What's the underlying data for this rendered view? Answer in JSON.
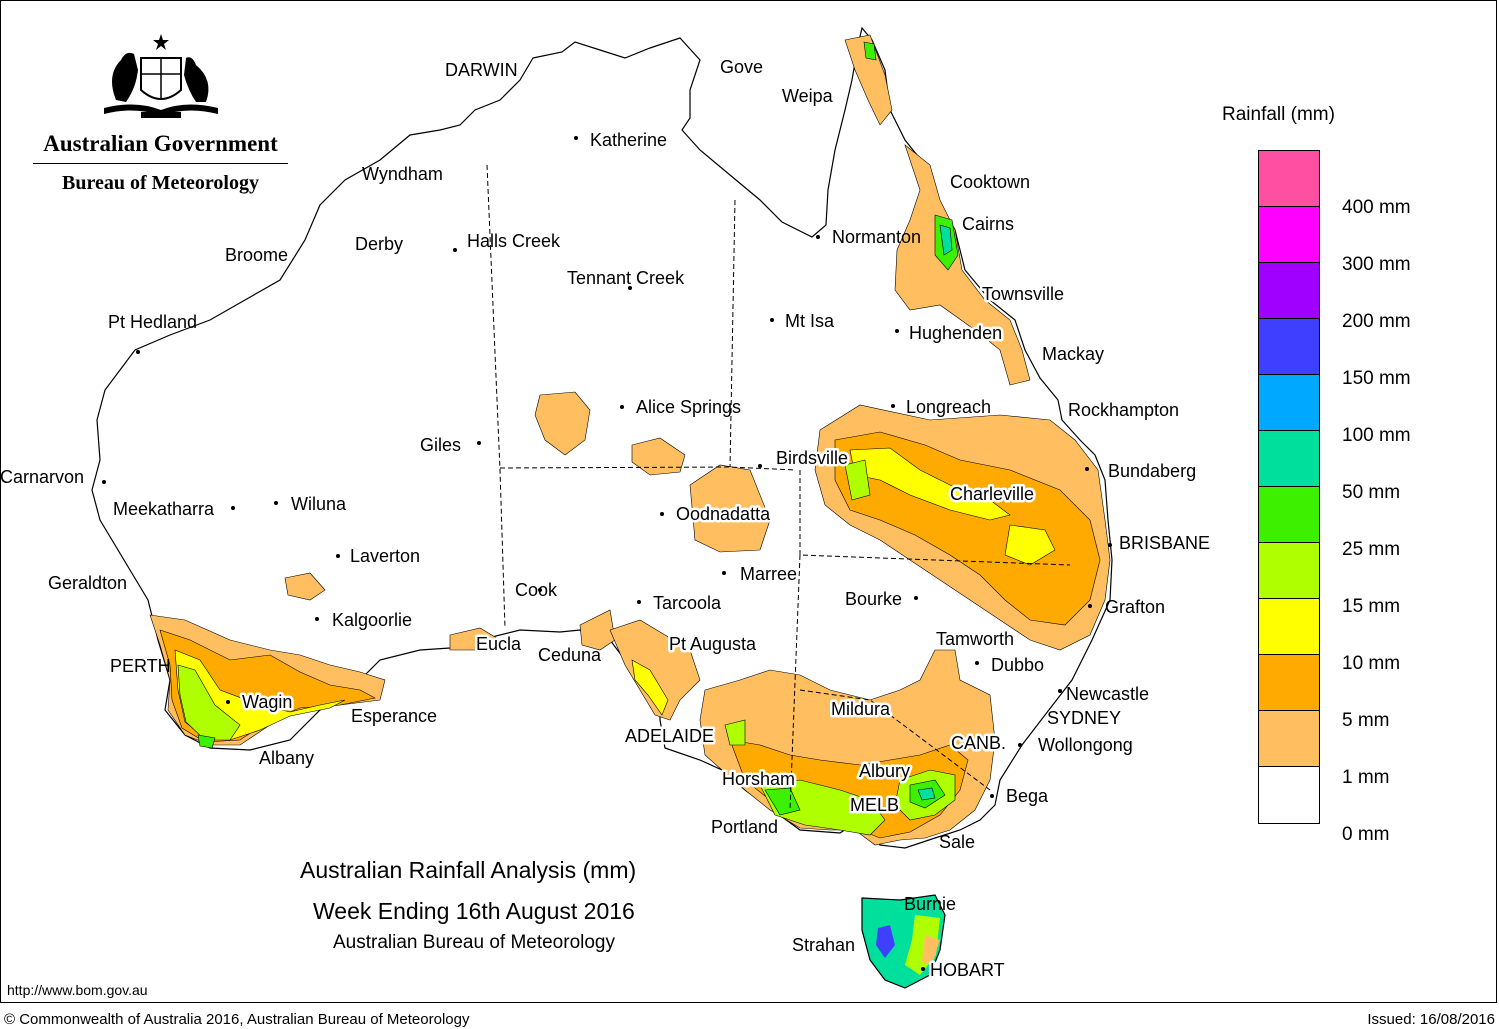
{
  "header": {
    "agency": "Australian Government",
    "bureau": "Bureau of Meteorology"
  },
  "legend": {
    "title": "Rainfall (mm)",
    "bands": [
      {
        "color": "#ff4fa3"
      },
      {
        "color": "#ff00ff"
      },
      {
        "color": "#a000ff"
      },
      {
        "color": "#3f3fff"
      },
      {
        "color": "#00a8ff"
      },
      {
        "color": "#00e09c"
      },
      {
        "color": "#3cf000"
      },
      {
        "color": "#b0ff00"
      },
      {
        "color": "#ffff00"
      },
      {
        "color": "#ffaa00"
      },
      {
        "color": "#ffbf60"
      },
      {
        "color": "#ffffff"
      }
    ],
    "ticks": [
      "400 mm",
      "300 mm",
      "200 mm",
      "150 mm",
      "100 mm",
      "50 mm",
      "25 mm",
      "15 mm",
      "10 mm",
      "5 mm",
      "1 mm",
      "0 mm"
    ]
  },
  "places": {
    "darwin": "DARWIN",
    "gove": "Gove",
    "weipa": "Weipa",
    "katherine": "Katherine",
    "wyndham": "Wyndham",
    "cooktown": "Cooktown",
    "cairns": "Cairns",
    "normanton": "Normanton",
    "derby": "Derby",
    "halls_creek": "Halls Creek",
    "broome": "Broome",
    "tennant_creek": "Tennant Creek",
    "townsville": "Townsville",
    "pt_hedland": "Pt Hedland",
    "mt_isa": "Mt Isa",
    "hughenden": "Hughenden",
    "mackay": "Mackay",
    "longreach": "Longreach",
    "rockhampton": "Rockhampton",
    "alice_springs": "Alice Springs",
    "giles": "Giles",
    "birdsville": "Birdsville",
    "bundaberg": "Bundaberg",
    "carnarvon": "Carnarvon",
    "charleville": "Charleville",
    "meekatharra": "Meekatharra",
    "wiluna": "Wiluna",
    "oodnadatta": "Oodnadatta",
    "brisbane": "BRISBANE",
    "laverton": "Laverton",
    "marree": "Marree",
    "geraldton": "Geraldton",
    "cook": "Cook",
    "bourke": "Bourke",
    "tarcoola": "Tarcoola",
    "grafton": "Grafton",
    "kalgoorlie": "Kalgoorlie",
    "tamworth": "Tamworth",
    "eucla": "Eucla",
    "pt_augusta": "Pt Augusta",
    "ceduna": "Ceduna",
    "dubbo": "Dubbo",
    "perth": "PERTH",
    "newcastle": "Newcastle",
    "wagin": "Wagin",
    "mildura": "Mildura",
    "esperance": "Esperance",
    "sydney": "SYDNEY",
    "adelaide": "ADELAIDE",
    "canb": "CANB.",
    "wollongong": "Wollongong",
    "albany": "Albany",
    "albury": "Albury",
    "horsham": "Horsham",
    "bega": "Bega",
    "melb": "MELB",
    "portland": "Portland",
    "sale": "Sale",
    "burnie": "Burnie",
    "strahan": "Strahan",
    "hobart": "HOBART"
  },
  "title": {
    "line1": "Australian Rainfall Analysis (mm)",
    "line2": "Week Ending 16th August 2016",
    "line3": "Australian Bureau of Meteorology"
  },
  "footer": {
    "url": "http://www.bom.gov.au",
    "copyright": "© Commonwealth of Australia 2016, Australian Bureau of Meteorology",
    "issued": "Issued: 16/08/2016"
  }
}
